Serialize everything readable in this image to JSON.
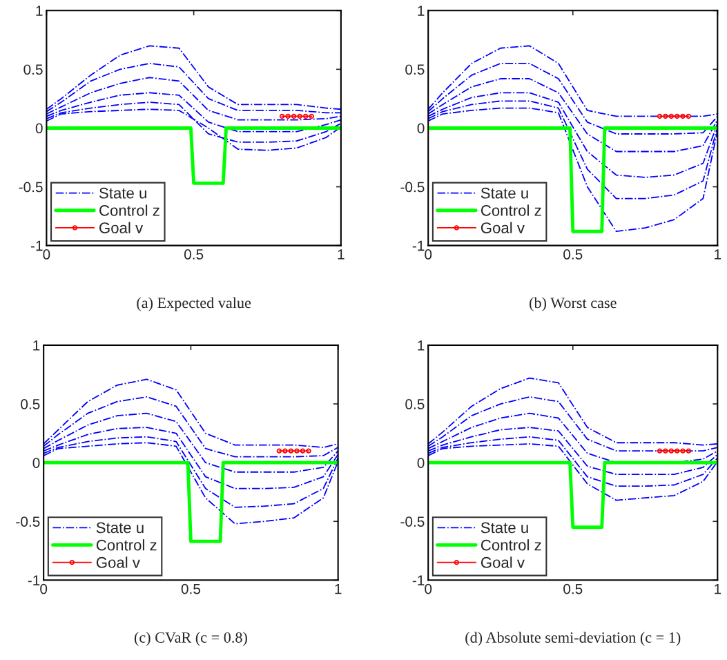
{
  "chart_data": [
    {
      "type": "line",
      "title": "(a) Expected value",
      "xlim": [
        0,
        1
      ],
      "xticks": [
        0,
        0.5,
        1
      ],
      "ylim": [
        -1,
        1
      ],
      "yticks": [
        -1,
        -0.5,
        0,
        0.5,
        1
      ],
      "legend": "bottom left",
      "grid": false,
      "x": [
        0,
        0.05,
        0.15,
        0.25,
        0.35,
        0.45,
        0.55,
        0.65,
        0.75,
        0.85,
        0.95,
        1
      ],
      "series": [
        {
          "name": "State u",
          "color": "#0000ff",
          "line_style": "dashdot",
          "values": [
            0.16,
            0.25,
            0.45,
            0.62,
            0.7,
            0.68,
            0.35,
            0.2,
            0.2,
            0.2,
            0.17,
            0.16
          ]
        },
        {
          "color": "#0000ff",
          "line_style": "dashdot",
          "values": [
            0.14,
            0.22,
            0.4,
            0.5,
            0.55,
            0.52,
            0.25,
            0.15,
            0.15,
            0.15,
            0.13,
            0.13
          ]
        },
        {
          "color": "#0000ff",
          "line_style": "dashdot",
          "values": [
            0.12,
            0.18,
            0.3,
            0.38,
            0.43,
            0.4,
            0.15,
            0.07,
            0.07,
            0.07,
            0.08,
            0.1
          ]
        },
        {
          "color": "#0000ff",
          "line_style": "dashdot",
          "values": [
            0.1,
            0.15,
            0.22,
            0.28,
            0.3,
            0.28,
            0.05,
            -0.03,
            -0.03,
            -0.03,
            0.03,
            0.07
          ]
        },
        {
          "color": "#0000ff",
          "line_style": "dashdot",
          "values": [
            0.08,
            0.13,
            0.17,
            0.2,
            0.22,
            0.2,
            -0.05,
            -0.12,
            -0.12,
            -0.11,
            -0.03,
            0.04
          ]
        },
        {
          "color": "#0000ff",
          "line_style": "dashdot",
          "values": [
            0.06,
            0.12,
            0.14,
            0.15,
            0.16,
            0.15,
            0.0,
            -0.18,
            -0.19,
            -0.17,
            -0.08,
            0.01
          ]
        },
        {
          "name": "Control z",
          "color": "#00ff00",
          "line_style": "solid",
          "x": [
            0,
            0.49,
            0.5,
            0.6,
            0.61,
            1
          ],
          "values": [
            0,
            0,
            -0.47,
            -0.47,
            0,
            0
          ]
        },
        {
          "name": "Goal v",
          "color": "#ff0000",
          "line_style": "solid",
          "marker": "circle",
          "x": [
            0.8,
            0.82,
            0.84,
            0.86,
            0.88,
            0.9
          ],
          "values": [
            0.1,
            0.1,
            0.1,
            0.1,
            0.1,
            0.1
          ]
        }
      ]
    },
    {
      "type": "line",
      "title": "(b) Worst case",
      "xlim": [
        0,
        1
      ],
      "xticks": [
        0,
        0.5,
        1
      ],
      "ylim": [
        -1,
        1
      ],
      "yticks": [
        -1,
        -0.5,
        0,
        0.5,
        1
      ],
      "legend": "bottom left",
      "grid": false,
      "x": [
        0,
        0.05,
        0.15,
        0.25,
        0.35,
        0.45,
        0.55,
        0.65,
        0.75,
        0.85,
        0.95,
        1
      ],
      "series": [
        {
          "name": "State u",
          "color": "#0000ff",
          "line_style": "dashdot",
          "values": [
            0.16,
            0.3,
            0.55,
            0.68,
            0.7,
            0.55,
            0.15,
            0.1,
            0.1,
            0.1,
            0.1,
            0.12
          ]
        },
        {
          "color": "#0000ff",
          "line_style": "dashdot",
          "values": [
            0.14,
            0.25,
            0.45,
            0.55,
            0.55,
            0.42,
            0.05,
            -0.05,
            -0.05,
            -0.05,
            -0.04,
            0.1
          ]
        },
        {
          "color": "#0000ff",
          "line_style": "dashdot",
          "values": [
            0.12,
            0.2,
            0.35,
            0.42,
            0.42,
            0.3,
            -0.05,
            -0.2,
            -0.2,
            -0.2,
            -0.15,
            0.07
          ]
        },
        {
          "color": "#0000ff",
          "line_style": "dashdot",
          "values": [
            0.1,
            0.16,
            0.26,
            0.3,
            0.3,
            0.22,
            -0.2,
            -0.4,
            -0.42,
            -0.4,
            -0.3,
            0.04
          ]
        },
        {
          "color": "#0000ff",
          "line_style": "dashdot",
          "values": [
            0.08,
            0.14,
            0.2,
            0.23,
            0.23,
            0.17,
            -0.35,
            -0.6,
            -0.6,
            -0.57,
            -0.45,
            0.01
          ]
        },
        {
          "color": "#0000ff",
          "line_style": "dashdot",
          "values": [
            0.06,
            0.12,
            0.15,
            0.17,
            0.17,
            0.13,
            -0.5,
            -0.88,
            -0.85,
            -0.78,
            -0.6,
            -0.02
          ]
        },
        {
          "name": "Control z",
          "color": "#00ff00",
          "line_style": "solid",
          "x": [
            0,
            0.49,
            0.5,
            0.6,
            0.61,
            1
          ],
          "values": [
            0,
            0,
            -0.88,
            -0.88,
            0,
            0
          ]
        },
        {
          "name": "Goal v",
          "color": "#ff0000",
          "line_style": "solid",
          "marker": "circle",
          "x": [
            0.8,
            0.82,
            0.84,
            0.86,
            0.88,
            0.9
          ],
          "values": [
            0.1,
            0.1,
            0.1,
            0.1,
            0.1,
            0.1
          ]
        }
      ]
    },
    {
      "type": "line",
      "title": "(c) CVaR (c = 0.8)",
      "xlim": [
        0,
        1
      ],
      "xticks": [
        0,
        0.5,
        1
      ],
      "ylim": [
        -1,
        1
      ],
      "yticks": [
        -1,
        -0.5,
        0,
        0.5,
        1
      ],
      "legend": "bottom left",
      "grid": false,
      "x": [
        0,
        0.05,
        0.15,
        0.25,
        0.35,
        0.45,
        0.55,
        0.65,
        0.75,
        0.85,
        0.95,
        1
      ],
      "series": [
        {
          "name": "State u",
          "color": "#0000ff",
          "line_style": "dashdot",
          "values": [
            0.16,
            0.28,
            0.52,
            0.66,
            0.71,
            0.62,
            0.25,
            0.15,
            0.15,
            0.15,
            0.13,
            0.16
          ]
        },
        {
          "color": "#0000ff",
          "line_style": "dashdot",
          "values": [
            0.14,
            0.24,
            0.42,
            0.52,
            0.56,
            0.48,
            0.12,
            0.05,
            0.05,
            0.05,
            0.06,
            0.13
          ]
        },
        {
          "color": "#0000ff",
          "line_style": "dashdot",
          "values": [
            0.12,
            0.19,
            0.32,
            0.4,
            0.42,
            0.35,
            0.0,
            -0.08,
            -0.08,
            -0.08,
            -0.04,
            0.1
          ]
        },
        {
          "color": "#0000ff",
          "line_style": "dashdot",
          "values": [
            0.1,
            0.15,
            0.24,
            0.29,
            0.3,
            0.25,
            -0.12,
            -0.22,
            -0.22,
            -0.21,
            -0.12,
            0.07
          ]
        },
        {
          "color": "#0000ff",
          "line_style": "dashdot",
          "values": [
            0.08,
            0.13,
            0.18,
            0.21,
            0.22,
            0.18,
            -0.22,
            -0.38,
            -0.37,
            -0.35,
            -0.22,
            0.04
          ]
        },
        {
          "color": "#0000ff",
          "line_style": "dashdot",
          "values": [
            0.06,
            0.12,
            0.14,
            0.16,
            0.17,
            0.14,
            -0.3,
            -0.52,
            -0.5,
            -0.47,
            -0.3,
            0.01
          ]
        },
        {
          "name": "Control z",
          "color": "#00ff00",
          "line_style": "solid",
          "x": [
            0,
            0.49,
            0.5,
            0.6,
            0.61,
            1
          ],
          "values": [
            0,
            0,
            -0.67,
            -0.67,
            0,
            0
          ]
        },
        {
          "name": "Goal v",
          "color": "#ff0000",
          "line_style": "solid",
          "marker": "circle",
          "x": [
            0.8,
            0.82,
            0.84,
            0.86,
            0.88,
            0.9
          ],
          "values": [
            0.1,
            0.1,
            0.1,
            0.1,
            0.1,
            0.1
          ]
        }
      ]
    },
    {
      "type": "line",
      "title": "(d) Absolute semi-deviation (c = 1)",
      "xlim": [
        0,
        1
      ],
      "xticks": [
        0,
        0.5,
        1
      ],
      "ylim": [
        -1,
        1
      ],
      "yticks": [
        -1,
        -0.5,
        0,
        0.5,
        1
      ],
      "legend": "bottom left",
      "grid": false,
      "x": [
        0,
        0.05,
        0.15,
        0.25,
        0.35,
        0.45,
        0.55,
        0.65,
        0.75,
        0.85,
        0.95,
        1
      ],
      "series": [
        {
          "name": "State u",
          "color": "#0000ff",
          "line_style": "dashdot",
          "values": [
            0.16,
            0.26,
            0.48,
            0.63,
            0.72,
            0.68,
            0.3,
            0.17,
            0.17,
            0.17,
            0.15,
            0.16
          ]
        },
        {
          "color": "#0000ff",
          "line_style": "dashdot",
          "values": [
            0.14,
            0.22,
            0.4,
            0.5,
            0.56,
            0.52,
            0.2,
            0.1,
            0.1,
            0.1,
            0.1,
            0.13
          ]
        },
        {
          "color": "#0000ff",
          "line_style": "dashdot",
          "values": [
            0.12,
            0.18,
            0.3,
            0.38,
            0.42,
            0.38,
            0.08,
            0.0,
            0.0,
            0.0,
            0.03,
            0.1
          ]
        },
        {
          "color": "#0000ff",
          "line_style": "dashdot",
          "values": [
            0.1,
            0.15,
            0.22,
            0.28,
            0.3,
            0.27,
            -0.03,
            -0.1,
            -0.1,
            -0.1,
            -0.04,
            0.07
          ]
        },
        {
          "color": "#0000ff",
          "line_style": "dashdot",
          "values": [
            0.08,
            0.13,
            0.17,
            0.2,
            0.22,
            0.19,
            -0.12,
            -0.2,
            -0.2,
            -0.19,
            -0.1,
            0.04
          ]
        },
        {
          "color": "#0000ff",
          "line_style": "dashdot",
          "values": [
            0.06,
            0.12,
            0.14,
            0.15,
            0.16,
            0.14,
            -0.18,
            -0.32,
            -0.3,
            -0.28,
            -0.16,
            0.01
          ]
        },
        {
          "name": "Control z",
          "color": "#00ff00",
          "line_style": "solid",
          "x": [
            0,
            0.49,
            0.5,
            0.6,
            0.61,
            1
          ],
          "values": [
            0,
            0,
            -0.55,
            -0.55,
            0,
            0
          ]
        },
        {
          "name": "Goal v",
          "color": "#ff0000",
          "line_style": "solid",
          "marker": "circle",
          "x": [
            0.8,
            0.82,
            0.84,
            0.86,
            0.88,
            0.9
          ],
          "values": [
            0.1,
            0.1,
            0.1,
            0.1,
            0.1,
            0.1
          ]
        }
      ]
    }
  ]
}
